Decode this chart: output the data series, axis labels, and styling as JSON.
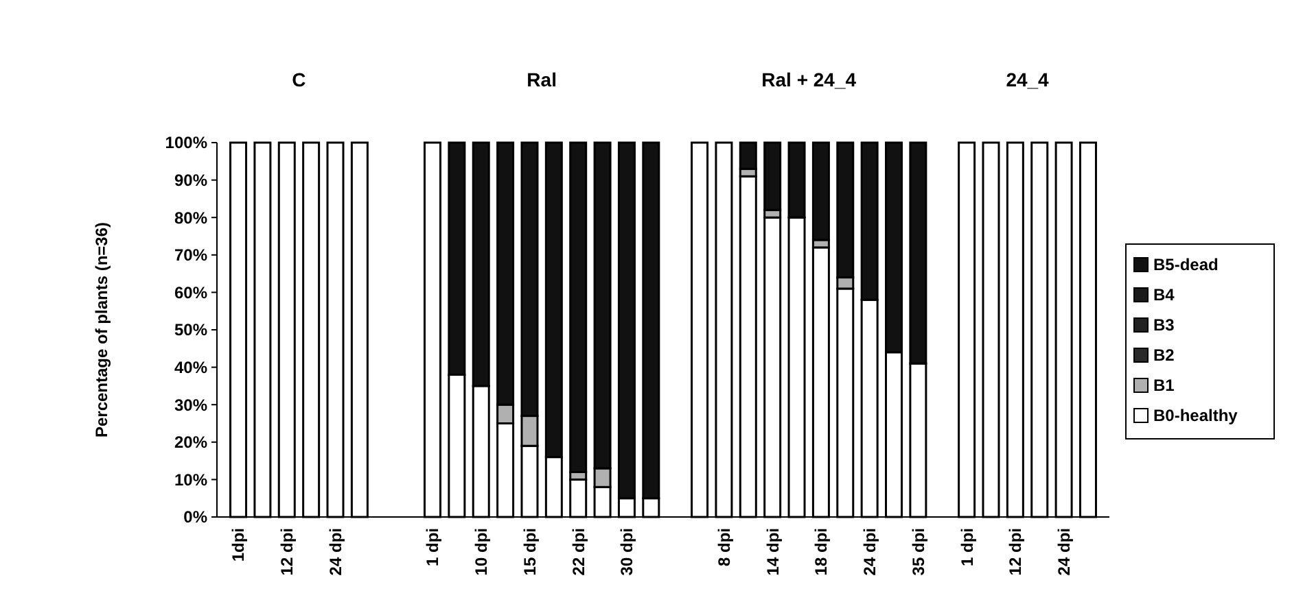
{
  "chart_data": {
    "type": "bar",
    "stacked": true,
    "ylabel": "Percentage of plants (n=36)",
    "annotations": [
      "C",
      "Ral",
      "Ral + 24_4",
      "24_4"
    ],
    "categories": [
      "1dpi",
      null,
      "12 dpi",
      null,
      "24 dpi",
      null,
      null,
      null,
      "1 dpi",
      null,
      "10 dpi",
      null,
      "15 dpi",
      null,
      "22 dpi",
      null,
      "30 dpi",
      null,
      null,
      null,
      "8 dpi",
      null,
      "14 dpi",
      null,
      "18 dpi",
      null,
      "24 dpi",
      null,
      "35 dpi",
      null,
      "1 dpi",
      null,
      "12 dpi",
      null,
      "24 dpi",
      null
    ],
    "series": [
      {
        "name": "B0-healthy",
        "color": "#ffffff",
        "values": [
          100,
          100,
          100,
          100,
          100,
          100,
          null,
          null,
          100,
          38,
          35,
          25,
          19,
          16,
          10,
          8,
          5,
          5,
          null,
          100,
          100,
          91,
          80,
          80,
          72,
          61,
          58,
          44,
          41,
          null,
          100,
          100,
          100,
          100,
          100,
          100
        ]
      },
      {
        "name": "B1",
        "color": "#b0b0b0",
        "values": [
          0,
          0,
          0,
          0,
          0,
          0,
          null,
          null,
          0,
          0,
          0,
          5,
          8,
          0,
          2,
          5,
          0,
          0,
          null,
          0,
          0,
          2,
          2,
          0,
          2,
          3,
          0,
          0,
          0,
          null,
          0,
          0,
          0,
          0,
          0,
          0
        ]
      },
      {
        "name": "B2",
        "color": "#2a2a2a",
        "values": [
          0,
          0,
          0,
          0,
          0,
          0,
          null,
          null,
          0,
          0,
          0,
          0,
          0,
          0,
          0,
          0,
          0,
          0,
          null,
          0,
          0,
          0,
          0,
          0,
          0,
          0,
          0,
          0,
          0,
          null,
          0,
          0,
          0,
          0,
          0,
          0
        ]
      },
      {
        "name": "B3",
        "color": "#222222",
        "values": [
          0,
          0,
          0,
          0,
          0,
          0,
          null,
          null,
          0,
          0,
          0,
          0,
          0,
          0,
          0,
          0,
          0,
          0,
          null,
          0,
          0,
          0,
          0,
          0,
          0,
          0,
          0,
          0,
          0,
          null,
          0,
          0,
          0,
          0,
          0,
          0
        ]
      },
      {
        "name": "B4",
        "color": "#1a1a1a",
        "values": [
          0,
          0,
          0,
          0,
          0,
          0,
          null,
          null,
          0,
          0,
          0,
          0,
          0,
          0,
          0,
          0,
          0,
          0,
          null,
          0,
          0,
          0,
          0,
          0,
          0,
          0,
          0,
          0,
          0,
          null,
          0,
          0,
          0,
          0,
          0,
          0
        ]
      },
      {
        "name": "B5-dead",
        "color": "#111111",
        "values": [
          0,
          0,
          0,
          0,
          0,
          0,
          null,
          null,
          0,
          62,
          65,
          70,
          73,
          84,
          88,
          87,
          95,
          95,
          null,
          0,
          0,
          7,
          18,
          20,
          26,
          36,
          42,
          56,
          59,
          null,
          0,
          0,
          0,
          0,
          0,
          0
        ]
      }
    ],
    "ylim": [
      0,
      100
    ],
    "yticks": [
      {
        "value": 0,
        "label": "0%"
      },
      {
        "value": 10,
        "label": "10%"
      },
      {
        "value": 20,
        "label": "20%"
      },
      {
        "value": 30,
        "label": "30%"
      },
      {
        "value": 40,
        "label": "40%"
      },
      {
        "value": 50,
        "label": "50%"
      },
      {
        "value": 60,
        "label": "60%"
      },
      {
        "value": 70,
        "label": "70%"
      },
      {
        "value": 80,
        "label": "80%"
      },
      {
        "value": 90,
        "label": "90%"
      },
      {
        "value": 100,
        "label": "100%"
      }
    ],
    "legend": "right"
  }
}
